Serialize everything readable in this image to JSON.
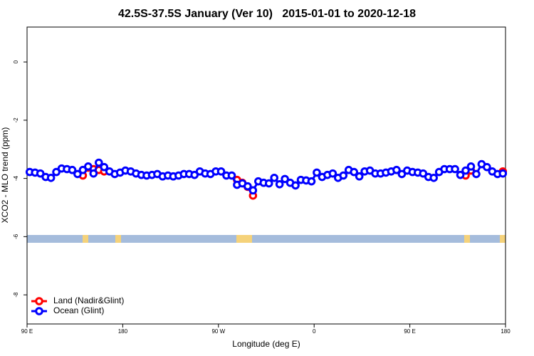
{
  "chart_data": {
    "type": "line",
    "title": "42.5S-37.5S January (Ver 10)   2015-01-01 to 2020-12-18",
    "xlabel": "Longitude (deg E)",
    "ylabel": "XCO2 - MLO trend (ppm)",
    "xlim": [
      90,
      540
    ],
    "ylim": [
      -9,
      1.2
    ],
    "xticks": [
      {
        "value": 90,
        "label": "90 E"
      },
      {
        "value": 180,
        "label": "180"
      },
      {
        "value": 270,
        "label": "90 W"
      },
      {
        "value": 360,
        "label": "0"
      },
      {
        "value": 450,
        "label": "90 E"
      },
      {
        "value": 540,
        "label": "180"
      }
    ],
    "yticks": [
      0,
      -2,
      -4,
      -6,
      -8
    ],
    "grid": false,
    "legend": "bottomleft",
    "x": [
      92.5,
      97.5,
      102.5,
      107.5,
      112.5,
      117.5,
      122.5,
      127.5,
      132.5,
      137.5,
      142.5,
      147.5,
      152.5,
      157.5,
      162.5,
      167.5,
      172.5,
      177.5,
      182.5,
      187.5,
      192.5,
      197.5,
      202.5,
      207.5,
      212.5,
      217.5,
      222.5,
      227.5,
      232.5,
      237.5,
      242.5,
      247.5,
      252.5,
      257.5,
      262.5,
      267.5,
      272.5,
      277.5,
      282.5,
      287.5,
      292.5,
      297.5,
      302.5,
      307.5,
      312.5,
      317.5,
      322.5,
      327.5,
      332.5,
      337.5,
      342.5,
      347.5,
      352.5,
      357.5,
      362.5,
      367.5,
      372.5,
      377.5,
      382.5,
      387.5,
      392.5,
      397.5,
      402.5,
      407.5,
      412.5,
      417.5,
      422.5,
      427.5,
      432.5,
      437.5,
      442.5,
      447.5,
      452.5,
      457.5,
      462.5,
      467.5,
      472.5,
      477.5,
      482.5,
      487.5,
      492.5,
      497.5,
      502.5,
      507.5,
      512.5,
      517.5,
      522.5,
      527.5,
      532.5,
      537.5
    ],
    "series": [
      {
        "name": "Land (Nadir&Glint)",
        "color": "#ff0000",
        "values": [
          null,
          null,
          null,
          null,
          null,
          null,
          null,
          null,
          null,
          null,
          -3.9,
          -3.63,
          -3.68,
          -3.71,
          -3.76,
          null,
          null,
          null,
          null,
          null,
          null,
          null,
          null,
          null,
          null,
          null,
          null,
          null,
          null,
          null,
          null,
          null,
          null,
          null,
          null,
          null,
          null,
          null,
          null,
          -4.05,
          -4.15,
          -4.29,
          -4.59,
          null,
          null,
          null,
          null,
          null,
          null,
          null,
          null,
          null,
          null,
          null,
          null,
          null,
          null,
          null,
          null,
          null,
          null,
          null,
          null,
          null,
          null,
          null,
          null,
          null,
          null,
          null,
          null,
          null,
          null,
          null,
          null,
          null,
          null,
          null,
          null,
          null,
          null,
          null,
          -3.9,
          -3.73,
          null,
          null,
          null,
          null,
          null,
          -3.76
        ]
      },
      {
        "name": "Ocean (Glint)",
        "color": "#0000ff",
        "values": [
          -3.78,
          -3.8,
          -3.83,
          -3.95,
          -3.98,
          -3.78,
          -3.66,
          -3.68,
          -3.71,
          -3.85,
          -3.71,
          -3.59,
          -3.83,
          -3.46,
          -3.61,
          -3.76,
          -3.85,
          -3.8,
          -3.73,
          -3.76,
          -3.83,
          -3.88,
          -3.9,
          -3.88,
          -3.85,
          -3.93,
          -3.9,
          -3.93,
          -3.9,
          -3.85,
          -3.85,
          -3.88,
          -3.76,
          -3.83,
          -3.85,
          -3.76,
          -3.76,
          -3.9,
          -3.9,
          -4.22,
          -4.17,
          -4.27,
          -4.41,
          -4.1,
          -4.15,
          -4.17,
          -3.98,
          -4.2,
          -4.02,
          -4.15,
          -4.24,
          -4.05,
          -4.07,
          -4.1,
          -3.8,
          -3.95,
          -3.88,
          -3.83,
          -3.98,
          -3.9,
          -3.71,
          -3.78,
          -3.93,
          -3.76,
          -3.73,
          -3.83,
          -3.83,
          -3.8,
          -3.76,
          -3.71,
          -3.85,
          -3.73,
          -3.78,
          -3.8,
          -3.83,
          -3.95,
          -3.98,
          -3.78,
          -3.68,
          -3.68,
          -3.68,
          -3.88,
          -3.73,
          -3.59,
          -3.85,
          -3.51,
          -3.61,
          -3.76,
          -3.85,
          -3.83
        ]
      }
    ]
  }
}
